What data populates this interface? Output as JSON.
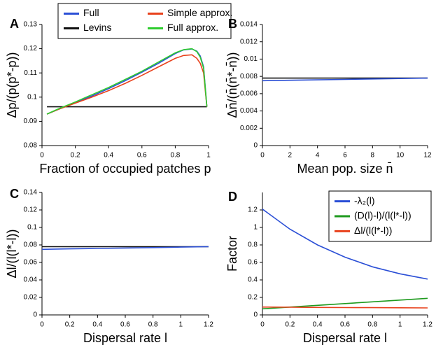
{
  "chart_data": [
    {
      "type": "line",
      "panel": "A",
      "xlabel": "Fraction of occupied patches p",
      "ylabel": "Δp/(p(p*-p))",
      "xlim": [
        0,
        1
      ],
      "xticks": [
        0,
        0.2,
        0.4,
        0.6,
        0.8,
        1
      ],
      "ylim": [
        0.08,
        0.13
      ],
      "yticks": [
        0.08,
        0.09,
        0.1,
        0.11,
        0.12,
        0.13
      ],
      "legend": "upper center",
      "x": [
        0.03,
        0.1,
        0.2,
        0.3,
        0.4,
        0.5,
        0.6,
        0.7,
        0.8,
        0.85,
        0.9,
        0.93,
        0.95,
        0.97,
        0.99
      ],
      "series": [
        {
          "name": "Full",
          "color": "#2b4fd6",
          "values": [
            0.093,
            0.095,
            0.0977,
            0.1005,
            0.1035,
            0.1068,
            0.1103,
            0.114,
            0.118,
            0.1195,
            0.1199,
            0.119,
            0.117,
            0.1125,
            0.096
          ]
        },
        {
          "name": "Levins",
          "color": "#111111",
          "values": [
            0.096,
            0.096,
            0.096,
            0.096,
            0.096,
            0.096,
            0.096,
            0.096,
            0.096,
            0.096,
            0.096,
            0.096,
            0.096,
            0.096,
            0.096
          ]
        },
        {
          "name": "Simple approx.",
          "color": "#e8411c",
          "values": [
            0.093,
            0.095,
            0.0975,
            0.1,
            0.1027,
            0.1057,
            0.109,
            0.1125,
            0.116,
            0.1172,
            0.1175,
            0.116,
            0.114,
            0.11,
            0.096
          ]
        },
        {
          "name": "Full approx.",
          "color": "#2ecc2e",
          "values": [
            0.093,
            0.0952,
            0.098,
            0.101,
            0.104,
            0.1073,
            0.1107,
            0.1145,
            0.1183,
            0.1196,
            0.12,
            0.1188,
            0.1165,
            0.112,
            0.096
          ]
        }
      ]
    },
    {
      "type": "line",
      "panel": "B",
      "xlabel": "Mean pop. size n̄",
      "ylabel": "Δn̄/(n̄(n̄*-n̄))",
      "xlim": [
        0,
        12
      ],
      "xticks": [
        0,
        2,
        4,
        6,
        8,
        10,
        12
      ],
      "ylim": [
        0,
        0.014
      ],
      "yticks": [
        0,
        0.002,
        0.004,
        0.006,
        0.008,
        0.01,
        0.012,
        0.014
      ],
      "x": [
        0,
        2,
        4,
        6,
        8,
        10,
        12
      ],
      "series": [
        {
          "color": "#111111",
          "values": [
            0.0078,
            0.0078,
            0.0078,
            0.0078,
            0.0078,
            0.0078,
            0.0078
          ]
        },
        {
          "color": "#2b4fd6",
          "values": [
            0.0075,
            0.00755,
            0.0076,
            0.00765,
            0.0077,
            0.00775,
            0.0078
          ]
        }
      ]
    },
    {
      "type": "line",
      "panel": "C",
      "xlabel": "Dispersal rate l",
      "ylabel": "Δl/(l(l*-l))",
      "xlim": [
        0,
        1.2
      ],
      "xticks": [
        0,
        0.2,
        0.4,
        0.6,
        0.8,
        1,
        1.2
      ],
      "ylim": [
        0,
        0.14
      ],
      "yticks": [
        0,
        0.02,
        0.04,
        0.06,
        0.08,
        0.1,
        0.12,
        0.14
      ],
      "x": [
        0,
        0.2,
        0.4,
        0.6,
        0.8,
        1,
        1.2
      ],
      "series": [
        {
          "color": "#111111",
          "values": [
            0.078,
            0.078,
            0.078,
            0.078,
            0.078,
            0.078,
            0.078
          ]
        },
        {
          "color": "#2b4fd6",
          "values": [
            0.075,
            0.0755,
            0.076,
            0.0765,
            0.077,
            0.0775,
            0.078
          ]
        }
      ]
    },
    {
      "type": "line",
      "panel": "D",
      "xlabel": "Dispersal rate l",
      "ylabel": "Factor",
      "xlim": [
        0,
        1.2
      ],
      "xticks": [
        0,
        0.2,
        0.4,
        0.6,
        0.8,
        1,
        1.2
      ],
      "ylim": [
        0,
        1.4
      ],
      "yticks": [
        0,
        0.2,
        0.4,
        0.6,
        0.8,
        1,
        1.2
      ],
      "legend": "upper right",
      "x": [
        0,
        0.2,
        0.4,
        0.6,
        0.8,
        1,
        1.2
      ],
      "series": [
        {
          "name": "-λ₂(l)",
          "color": "#2b4fd6",
          "values": [
            1.21,
            0.98,
            0.8,
            0.66,
            0.55,
            0.47,
            0.41
          ]
        },
        {
          "name": "(D(l)-l)/(l(l*-l))",
          "color": "#1e9a1e",
          "values": [
            0.07,
            0.09,
            0.11,
            0.13,
            0.15,
            0.17,
            0.19
          ]
        },
        {
          "name": "Δl/(l(l*-l))",
          "color": "#e8411c",
          "values": [
            0.09,
            0.088,
            0.086,
            0.084,
            0.083,
            0.082,
            0.08
          ]
        }
      ]
    }
  ]
}
